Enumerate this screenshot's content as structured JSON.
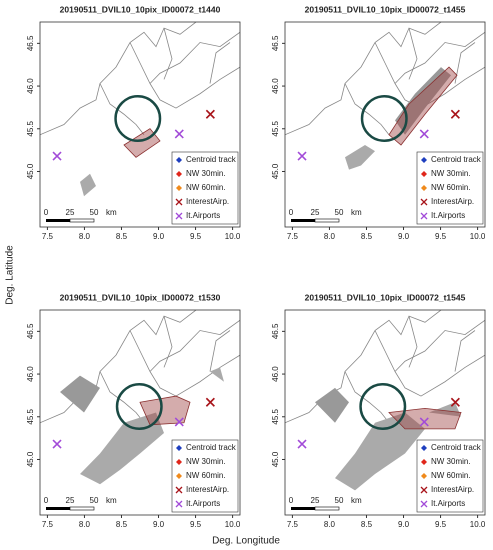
{
  "figure": {
    "xlabel": "Deg. Longitude",
    "ylabel": "Deg. Latitude",
    "xlim": [
      7.4,
      10.1
    ],
    "ylim": [
      44.35,
      46.75
    ],
    "xticks": [
      {
        "value": 7.5,
        "label": "7.5"
      },
      {
        "value": 8,
        "label": "8.0"
      },
      {
        "value": 8.5,
        "label": "8.5"
      },
      {
        "value": 9,
        "label": "9.0"
      },
      {
        "value": 9.5,
        "label": "9.5"
      },
      {
        "value": 10,
        "label": "10.0"
      }
    ],
    "yticks": [
      {
        "value": 45,
        "label": "45.0"
      },
      {
        "value": 45.5,
        "label": "45.5"
      },
      {
        "value": 46,
        "label": "46.0"
      },
      {
        "value": 46.5,
        "label": "46.5"
      }
    ],
    "legend": [
      {
        "name": "Centroid track",
        "color": "#1f3fbf",
        "marker": "diamond"
      },
      {
        "name": "NW 30min.",
        "color": "#e0261b",
        "marker": "diamond"
      },
      {
        "name": "NW 60min.",
        "color": "#f08a1c",
        "marker": "diamond"
      },
      {
        "name": "InterestAirp.",
        "color": "#a8141a",
        "marker": "x"
      },
      {
        "name": "It.Airports",
        "color": "#a24bd8",
        "marker": "x"
      }
    ],
    "scalebar": [
      "0",
      "25",
      "50",
      "km"
    ],
    "interest_airport": {
      "x": 9.7,
      "y": 45.67
    },
    "airports": [
      {
        "x": 7.63,
        "y": 45.18
      },
      {
        "x": 9.28,
        "y": 45.44
      }
    ],
    "panels": [
      {
        "title": "20190511_DVIL10_10pix_ID00072_t1440",
        "circle": {
          "x": 8.72,
          "y": 45.62,
          "r": 0.3
        }
      },
      {
        "title": "20190511_DVIL10_10pix_ID00072_t1455",
        "circle": {
          "x": 8.74,
          "y": 45.62,
          "r": 0.3
        }
      },
      {
        "title": "20190511_DVIL10_10pix_ID00072_t1530",
        "circle": {
          "x": 8.74,
          "y": 45.62,
          "r": 0.3
        }
      },
      {
        "title": "20190511_DVIL10_10pix_ID00072_t1545",
        "circle": {
          "x": 8.72,
          "y": 45.62,
          "r": 0.3
        }
      }
    ]
  }
}
